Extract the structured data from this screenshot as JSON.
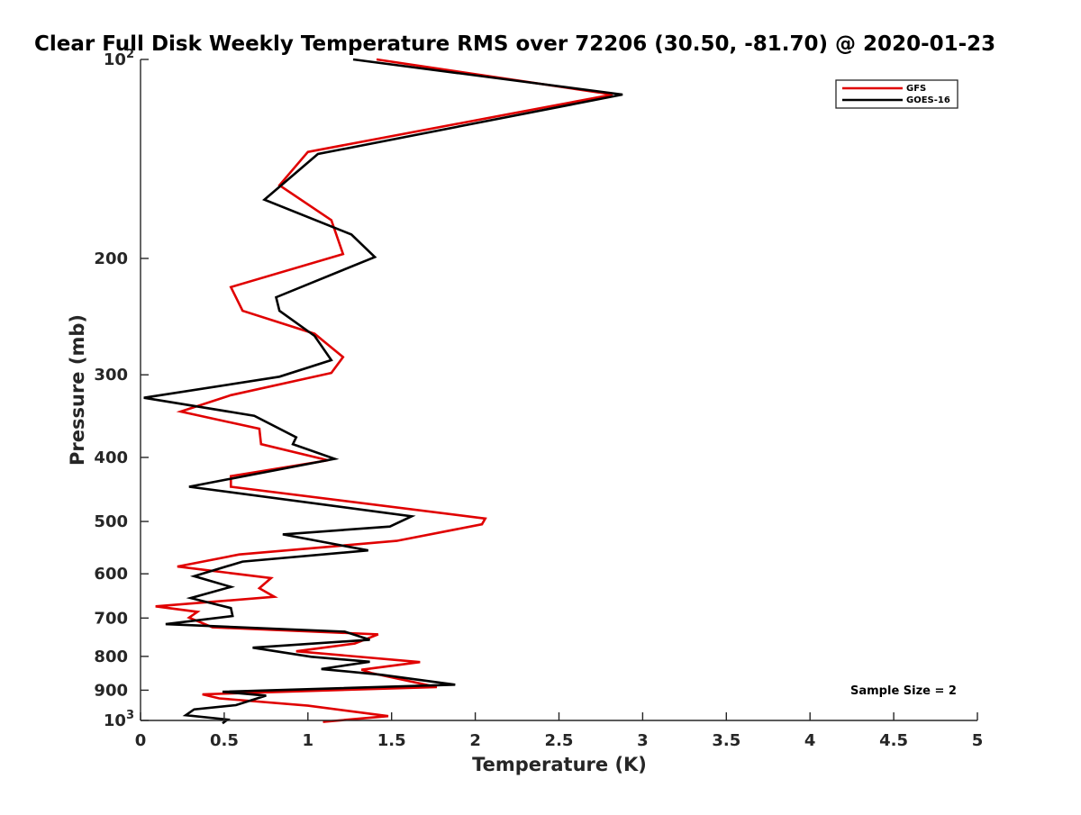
{
  "chart_data": {
    "type": "line",
    "title": "Clear Full Disk Weekly Temperature RMS over 72206 (30.50, -81.70) @ 2020-01-23",
    "xlabel": "Temperature (K)",
    "ylabel": "Pressure (mb)",
    "xlim": [
      0,
      5
    ],
    "ylim": [
      100,
      1000
    ],
    "yscale": "log",
    "y_reversed": true,
    "x_ticks": [
      "0",
      "0.5",
      "1",
      "1.5",
      "2",
      "2.5",
      "3",
      "3.5",
      "4",
      "4.5",
      "5"
    ],
    "y_ticks": [
      {
        "value": 100,
        "base": "10",
        "exp": "2"
      },
      {
        "value": 200,
        "label": "200"
      },
      {
        "value": 300,
        "label": "300"
      },
      {
        "value": 400,
        "label": "400"
      },
      {
        "value": 500,
        "label": "500"
      },
      {
        "value": 600,
        "label": "600"
      },
      {
        "value": 700,
        "label": "700"
      },
      {
        "value": 800,
        "label": "800"
      },
      {
        "value": 900,
        "label": "900"
      },
      {
        "value": 1000,
        "base": "10",
        "exp": "3"
      }
    ],
    "legend_position": "top-right",
    "annotation": "Sample Size = 2",
    "series": [
      {
        "name": "GFS",
        "color": "#e00000",
        "x": [
          1.41,
          2.82,
          1.0,
          0.83,
          1.14,
          1.21,
          0.54,
          0.61,
          1.04,
          1.21,
          1.14,
          0.54,
          0.24,
          0.71,
          0.72,
          1.12,
          0.54,
          0.54,
          2.06,
          2.04,
          1.53,
          0.59,
          0.22,
          0.78,
          0.71,
          0.8,
          0.09,
          0.34,
          0.29,
          0.43,
          1.42,
          1.28,
          0.93,
          1.67,
          1.32,
          1.38,
          1.77,
          0.37,
          0.47,
          1.0,
          1.48,
          1.09
        ],
        "y": [
          100,
          113,
          138,
          155,
          175,
          197,
          221,
          240,
          260,
          282,
          298,
          322,
          341,
          362,
          382,
          404,
          427,
          443,
          495,
          505,
          535,
          561,
          585,
          609,
          631,
          650,
          672,
          685,
          699,
          723,
          741,
          765,
          786,
          816,
          838,
          848,
          890,
          913,
          926,
          950,
          985,
          1005
        ]
      },
      {
        "name": "GOES-16",
        "color": "#000000",
        "x": [
          1.27,
          2.88,
          1.06,
          0.74,
          1.26,
          1.4,
          0.81,
          0.83,
          1.04,
          1.14,
          0.83,
          0.02,
          0.68,
          0.93,
          0.91,
          1.16,
          0.29,
          1.62,
          1.49,
          0.85,
          1.36,
          0.61,
          0.32,
          0.54,
          0.3,
          0.54,
          0.55,
          0.15,
          1.22,
          1.37,
          0.67,
          1.02,
          1.37,
          1.08,
          1.44,
          1.88,
          0.49,
          0.75,
          0.57,
          0.32,
          0.27,
          0.52,
          0.49
        ],
        "y": [
          100,
          113,
          139,
          163,
          184,
          199,
          229,
          240,
          262,
          285,
          302,
          325,
          346,
          373,
          382,
          402,
          443,
          491,
          509,
          523,
          553,
          575,
          605,
          628,
          653,
          676,
          695,
          715,
          734,
          755,
          776,
          801,
          815,
          836,
          853,
          883,
          905,
          917,
          948,
          962,
          982,
          997,
          1010
        ]
      }
    ]
  }
}
